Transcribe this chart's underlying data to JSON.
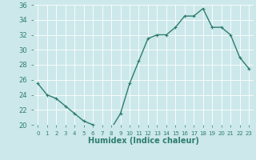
{
  "x": [
    0,
    1,
    2,
    3,
    4,
    5,
    6,
    7,
    8,
    9,
    10,
    11,
    12,
    13,
    14,
    15,
    16,
    17,
    18,
    19,
    20,
    21,
    22,
    23
  ],
  "y": [
    25.5,
    24.0,
    23.5,
    22.5,
    21.5,
    20.5,
    20.0,
    19.5,
    19.5,
    21.5,
    25.5,
    28.5,
    31.5,
    32.0,
    32.0,
    33.0,
    34.5,
    34.5,
    35.5,
    33.0,
    33.0,
    32.0,
    29.0,
    27.5
  ],
  "xlabel": "Humidex (Indice chaleur)",
  "ylim": [
    20,
    36
  ],
  "xlim": [
    -0.5,
    23.5
  ],
  "yticks": [
    20,
    22,
    24,
    26,
    28,
    30,
    32,
    34,
    36
  ],
  "xtick_labels": [
    "0",
    "1",
    "2",
    "3",
    "4",
    "5",
    "6",
    "7",
    "8",
    "9",
    "10",
    "11",
    "12",
    "13",
    "14",
    "15",
    "16",
    "17",
    "18",
    "19",
    "20",
    "21",
    "22",
    "23"
  ],
  "line_color": "#2d7d6e",
  "marker": "+",
  "marker_size": 3,
  "linewidth": 1.0,
  "bg_color": "#cce8ea",
  "grid_color": "#ffffff",
  "label_color": "#2d7d6e",
  "tick_color": "#2d7d6e",
  "xlabel_fontsize": 7,
  "ytick_fontsize": 6,
  "xtick_fontsize": 5
}
